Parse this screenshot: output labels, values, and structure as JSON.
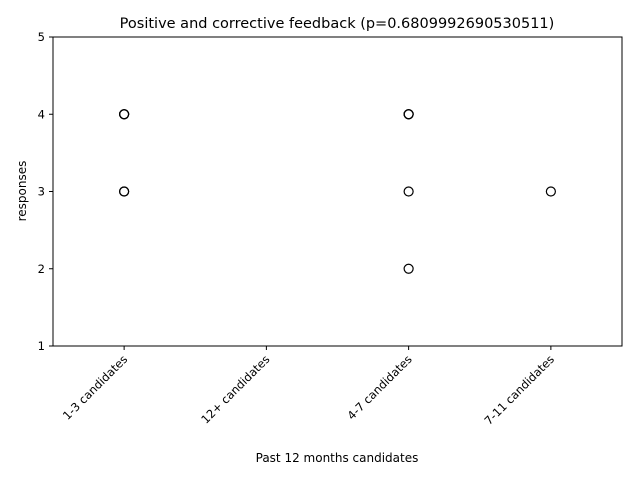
{
  "chart_data": {
    "type": "scatter",
    "title": "Positive and corrective feedback (p=0.6809992690530511)",
    "xlabel": "Past 12 months candidates",
    "ylabel": "responses",
    "categories": [
      "1-3 candidates",
      "12+ candidates",
      "4-7 candidates",
      "7-11 candidates"
    ],
    "ylim": [
      1,
      5
    ],
    "yticks": [
      "1",
      "2",
      "3",
      "4",
      "5"
    ],
    "grid": false,
    "points": [
      {
        "category": "1-3 candidates",
        "y": 4
      },
      {
        "category": "1-3 candidates",
        "y": 4
      },
      {
        "category": "1-3 candidates",
        "y": 4
      },
      {
        "category": "1-3 candidates",
        "y": 3
      },
      {
        "category": "1-3 candidates",
        "y": 3
      },
      {
        "category": "4-7 candidates",
        "y": 4
      },
      {
        "category": "4-7 candidates",
        "y": 4
      },
      {
        "category": "4-7 candidates",
        "y": 4
      },
      {
        "category": "4-7 candidates",
        "y": 3
      },
      {
        "category": "4-7 candidates",
        "y": 2
      },
      {
        "category": "7-11 candidates",
        "y": 3
      }
    ],
    "colors": {
      "marker_edge": "#000000",
      "axis": "#000000",
      "background": "#ffffff"
    }
  }
}
